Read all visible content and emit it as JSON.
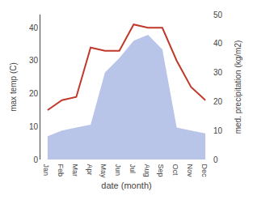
{
  "chart_data": {
    "type": "line",
    "categories": [
      "Jan",
      "Feb",
      "Mar",
      "Apr",
      "May",
      "Jun",
      "Jul",
      "Aug",
      "Sep",
      "Oct",
      "Nov",
      "Dec"
    ],
    "xlabel": "date (month)",
    "ylabel": "max temp (C)",
    "y2label": "med. precipitation (kg/m2)",
    "series": [
      {
        "type": "area",
        "color": "#b8c4e8",
        "axis": "y2",
        "values": [
          8,
          10,
          11,
          12,
          30,
          35,
          41,
          43,
          38,
          11,
          10,
          9
        ]
      },
      {
        "type": "line",
        "color": "#c0392b",
        "values": [
          15,
          18,
          19,
          34,
          33,
          33,
          41,
          40,
          40,
          30,
          22,
          18
        ]
      }
    ],
    "ylim": [
      0,
      44
    ],
    "yticks": [
      0,
      10,
      20,
      30,
      40
    ],
    "y2lim": [
      0,
      50
    ],
    "y2ticks": [
      0,
      10,
      20,
      30,
      40,
      50
    ],
    "grid": false
  }
}
